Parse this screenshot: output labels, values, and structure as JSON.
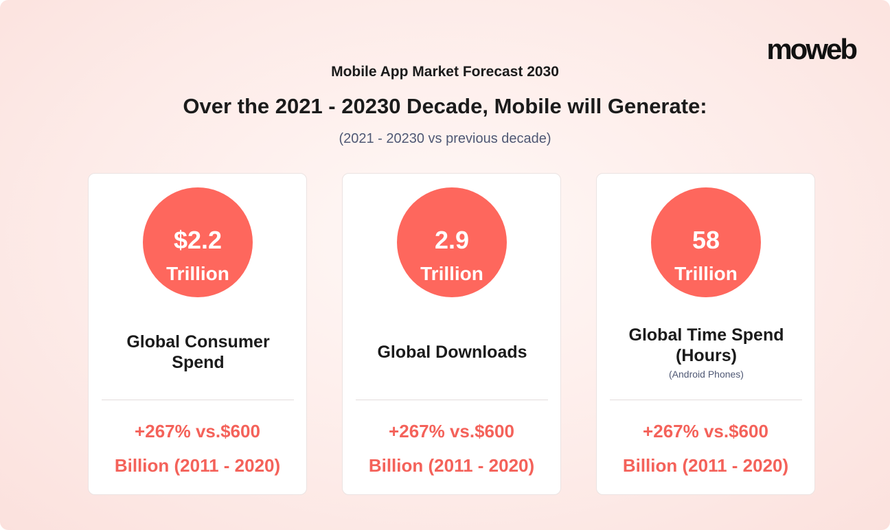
{
  "header": {
    "logo": "moweb",
    "kicker": "Mobile App Market Forecast 2030",
    "title": "Over the 2021 - 20230 Decade, Mobile will Generate:",
    "subtitle": "(2021 - 20230 vs previous decade)"
  },
  "cards": [
    {
      "value": "$2.2",
      "unit": "Trillion",
      "label": "Global Consumer Spend",
      "comparison": [
        "+267% vs.$600",
        "Billion (2011 - 2020)"
      ]
    },
    {
      "value": "2.9",
      "unit": "Trillion",
      "label": "Global Downloads",
      "comparison": [
        "+267% vs.$600",
        "Billion (2011 - 2020)"
      ]
    },
    {
      "value": "58",
      "unit": "Trillion",
      "label": "Global Time Spend (Hours)",
      "note": "(Android Phones)",
      "comparison": [
        "+267% vs.$600",
        "Billion (2011 - 2020)"
      ]
    }
  ]
}
